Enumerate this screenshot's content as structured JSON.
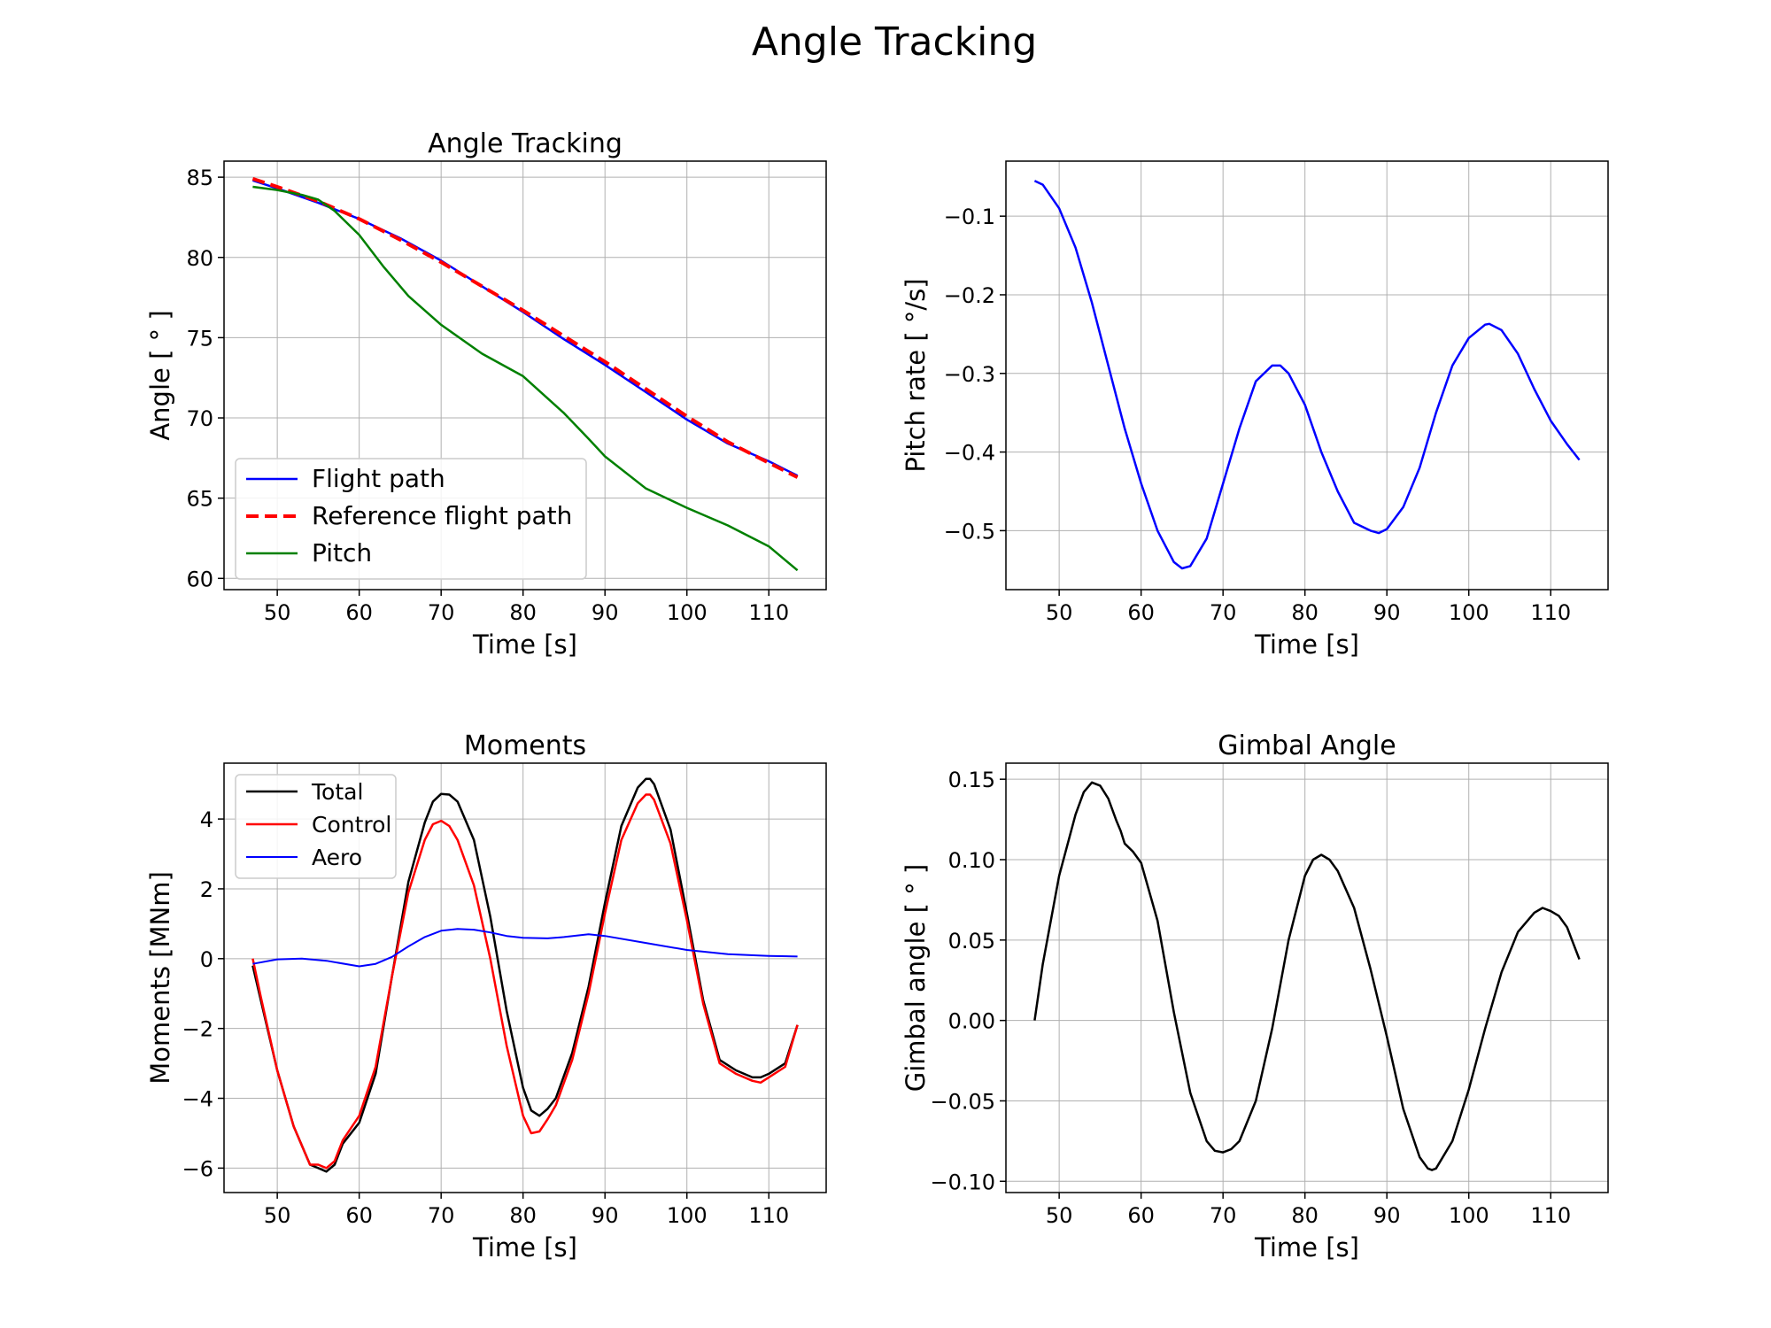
{
  "figure": {
    "suptitle": "Angle Tracking"
  },
  "chart_data": [
    {
      "type": "line",
      "title": "Angle Tracking",
      "xlabel": "Time [s]",
      "ylabel": "Angle [ $^\\circ$ ]",
      "xlim": [
        43.5,
        117
      ],
      "ylim": [
        59.3,
        86.0
      ],
      "xticks": [
        50,
        60,
        70,
        80,
        90,
        100,
        110
      ],
      "yticks": [
        60,
        65,
        70,
        75,
        80,
        85
      ],
      "tick_labels_x": [
        "50",
        "60",
        "70",
        "80",
        "90",
        "100",
        "110"
      ],
      "tick_labels_y": [
        "60",
        "65",
        "70",
        "75",
        "80",
        "85"
      ],
      "grid": true,
      "legend": {
        "placement": "lower-left",
        "fontsize": "large"
      },
      "series": [
        {
          "name": "Flight path",
          "color": "#0000ff",
          "style": "solid",
          "width": 2.5,
          "x": [
            47,
            50,
            55,
            60,
            65,
            70,
            75,
            80,
            85,
            90,
            95,
            100,
            105,
            110,
            113.5
          ],
          "y": [
            84.8,
            84.3,
            83.4,
            82.4,
            81.2,
            79.8,
            78.2,
            76.6,
            74.9,
            73.3,
            71.6,
            69.9,
            68.4,
            67.3,
            66.4
          ]
        },
        {
          "name": "Reference flight path",
          "color": "#ff0000",
          "style": "dashed",
          "width": 4,
          "x": [
            47,
            50,
            55,
            60,
            65,
            70,
            75,
            80,
            85,
            90,
            95,
            100,
            105,
            110,
            113.5
          ],
          "y": [
            84.9,
            84.4,
            83.5,
            82.4,
            81.1,
            79.7,
            78.2,
            76.7,
            75.1,
            73.5,
            71.8,
            70.1,
            68.5,
            67.2,
            66.3
          ]
        },
        {
          "name": "Pitch",
          "color": "#008000",
          "style": "solid",
          "width": 2.5,
          "x": [
            47,
            50,
            53,
            55,
            57,
            60,
            63,
            66,
            70,
            75,
            80,
            85,
            88,
            90,
            95,
            100,
            105,
            110,
            113.5
          ],
          "y": [
            84.4,
            84.2,
            83.9,
            83.6,
            82.9,
            81.4,
            79.4,
            77.6,
            75.8,
            74.0,
            72.6,
            70.3,
            68.7,
            67.6,
            65.6,
            64.4,
            63.3,
            62.0,
            60.5
          ]
        }
      ]
    },
    {
      "type": "line",
      "title": "",
      "xlabel": "Time [s]",
      "ylabel": "Pitch rate [ $^\\circ$/s]",
      "xlim": [
        43.5,
        117
      ],
      "ylim": [
        -0.575,
        -0.03
      ],
      "xticks": [
        50,
        60,
        70,
        80,
        90,
        100,
        110
      ],
      "yticks": [
        -0.5,
        -0.4,
        -0.3,
        -0.2,
        -0.1
      ],
      "tick_labels_x": [
        "50",
        "60",
        "70",
        "80",
        "90",
        "100",
        "110"
      ],
      "tick_labels_y": [
        "−0.5",
        "−0.4",
        "−0.3",
        "−0.2",
        "−0.1"
      ],
      "grid": true,
      "series": [
        {
          "color": "#0000ff",
          "style": "solid",
          "width": 2.5,
          "x": [
            47,
            48,
            50,
            52,
            54,
            56,
            58,
            60,
            62,
            64,
            65,
            66,
            68,
            70,
            72,
            74,
            76,
            77,
            78,
            80,
            82,
            84,
            86,
            88,
            89,
            90,
            92,
            94,
            96,
            98,
            100,
            102,
            102.5,
            104,
            106,
            108,
            110,
            112,
            113.5
          ],
          "y": [
            -0.055,
            -0.06,
            -0.09,
            -0.14,
            -0.21,
            -0.29,
            -0.37,
            -0.44,
            -0.5,
            -0.54,
            -0.548,
            -0.545,
            -0.51,
            -0.44,
            -0.37,
            -0.31,
            -0.29,
            -0.29,
            -0.3,
            -0.34,
            -0.4,
            -0.45,
            -0.49,
            -0.5,
            -0.503,
            -0.498,
            -0.47,
            -0.42,
            -0.35,
            -0.29,
            -0.255,
            -0.238,
            -0.237,
            -0.245,
            -0.275,
            -0.32,
            -0.36,
            -0.39,
            -0.41
          ]
        }
      ]
    },
    {
      "type": "line",
      "title": "Moments",
      "xlabel": "Time [s]",
      "ylabel": "Moments [MNm]",
      "xlim": [
        43.5,
        117
      ],
      "ylim": [
        -6.7,
        5.6
      ],
      "xticks": [
        50,
        60,
        70,
        80,
        90,
        100,
        110
      ],
      "yticks": [
        -6,
        -4,
        -2,
        0,
        2,
        4
      ],
      "tick_labels_x": [
        "50",
        "60",
        "70",
        "80",
        "90",
        "100",
        "110"
      ],
      "tick_labels_y": [
        "−6",
        "−4",
        "−2",
        "0",
        "2",
        "4"
      ],
      "grid": true,
      "legend": {
        "placement": "upper-left",
        "fontsize": "medium"
      },
      "series": [
        {
          "name": "Total",
          "color": "#000000",
          "style": "solid",
          "width": 2.5,
          "x": [
            47,
            48,
            50,
            52,
            54,
            55,
            56,
            57,
            57.5,
            58,
            60,
            62,
            64,
            66,
            68,
            69,
            70,
            71,
            72,
            74,
            76,
            78,
            80,
            81,
            82,
            83,
            84,
            86,
            88,
            90,
            92,
            94,
            95,
            95.5,
            96,
            98,
            100,
            102,
            104,
            106,
            108,
            109,
            110,
            112,
            113.5
          ],
          "y": [
            -0.2,
            -1.2,
            -3.2,
            -4.8,
            -5.9,
            -6.0,
            -6.1,
            -5.9,
            -5.6,
            -5.3,
            -4.7,
            -3.3,
            -0.5,
            2.2,
            3.9,
            4.5,
            4.72,
            4.7,
            4.5,
            3.4,
            1.2,
            -1.5,
            -3.7,
            -4.35,
            -4.5,
            -4.3,
            -4.0,
            -2.7,
            -0.8,
            1.6,
            3.8,
            4.9,
            5.15,
            5.15,
            5.0,
            3.7,
            1.3,
            -1.2,
            -2.9,
            -3.2,
            -3.4,
            -3.4,
            -3.3,
            -3.0,
            -1.9
          ]
        },
        {
          "name": "Control",
          "color": "#ff0000",
          "style": "solid",
          "width": 2.5,
          "x": [
            47,
            48,
            50,
            52,
            54,
            55,
            56,
            57,
            57.5,
            58,
            60,
            62,
            64,
            66,
            68,
            69,
            70,
            71,
            72,
            74,
            76,
            78,
            80,
            81,
            82,
            83,
            84,
            86,
            88,
            90,
            92,
            94,
            95,
            95.5,
            96,
            98,
            100,
            102,
            104,
            106,
            108,
            109,
            110,
            112,
            113.5
          ],
          "y": [
            0.0,
            -1.1,
            -3.2,
            -4.8,
            -5.9,
            -5.9,
            -6.0,
            -5.8,
            -5.5,
            -5.2,
            -4.5,
            -3.1,
            -0.5,
            1.9,
            3.4,
            3.85,
            3.95,
            3.8,
            3.4,
            2.1,
            0.0,
            -2.5,
            -4.5,
            -5.0,
            -4.95,
            -4.6,
            -4.2,
            -2.9,
            -1.0,
            1.3,
            3.4,
            4.45,
            4.7,
            4.7,
            4.55,
            3.3,
            1.1,
            -1.3,
            -3.0,
            -3.3,
            -3.5,
            -3.55,
            -3.4,
            -3.1,
            -1.9
          ]
        },
        {
          "name": "Aero",
          "color": "#0000ff",
          "style": "solid",
          "width": 2,
          "x": [
            47,
            50,
            53,
            56,
            60,
            62,
            64,
            66,
            68,
            70,
            72,
            74,
            76,
            78,
            80,
            83,
            85,
            88,
            90,
            95,
            100,
            105,
            110,
            113.5
          ],
          "y": [
            -0.15,
            -0.02,
            0.0,
            -0.06,
            -0.22,
            -0.15,
            0.05,
            0.35,
            0.62,
            0.8,
            0.85,
            0.83,
            0.75,
            0.65,
            0.6,
            0.58,
            0.62,
            0.7,
            0.65,
            0.45,
            0.25,
            0.13,
            0.08,
            0.06
          ]
        }
      ]
    },
    {
      "type": "line",
      "title": "Gimbal Angle",
      "xlabel": "Time [s]",
      "ylabel": "Gimbal angle [ $^\\circ$ ]",
      "xlim": [
        43.5,
        117
      ],
      "ylim": [
        -0.107,
        0.16
      ],
      "xticks": [
        50,
        60,
        70,
        80,
        90,
        100,
        110
      ],
      "yticks": [
        -0.1,
        -0.05,
        0.0,
        0.05,
        0.1,
        0.15
      ],
      "tick_labels_x": [
        "50",
        "60",
        "70",
        "80",
        "90",
        "100",
        "110"
      ],
      "tick_labels_y": [
        "−0.10",
        "−0.05",
        "0.00",
        "0.05",
        "0.10",
        "0.15"
      ],
      "grid": true,
      "series": [
        {
          "color": "#000000",
          "style": "solid",
          "width": 2.5,
          "x": [
            47,
            48,
            50,
            52,
            53,
            54,
            55,
            56,
            57,
            57.5,
            58,
            59,
            60,
            62,
            64,
            66,
            68,
            69,
            70,
            71,
            72,
            74,
            76,
            78,
            80,
            81,
            82,
            83,
            84,
            86,
            88,
            90,
            92,
            94,
            95,
            95.5,
            96,
            98,
            100,
            102,
            104,
            106,
            108,
            109,
            110,
            111,
            112,
            113.5
          ],
          "y": [
            0.0,
            0.035,
            0.09,
            0.128,
            0.142,
            0.148,
            0.146,
            0.138,
            0.124,
            0.118,
            0.11,
            0.105,
            0.098,
            0.062,
            0.005,
            -0.045,
            -0.075,
            -0.081,
            -0.082,
            -0.08,
            -0.075,
            -0.05,
            -0.005,
            0.05,
            0.09,
            0.1,
            0.103,
            0.1,
            0.093,
            0.07,
            0.032,
            -0.01,
            -0.055,
            -0.085,
            -0.092,
            -0.093,
            -0.092,
            -0.075,
            -0.043,
            -0.005,
            0.03,
            0.055,
            0.067,
            0.07,
            0.068,
            0.065,
            0.058,
            0.038
          ]
        }
      ]
    }
  ]
}
